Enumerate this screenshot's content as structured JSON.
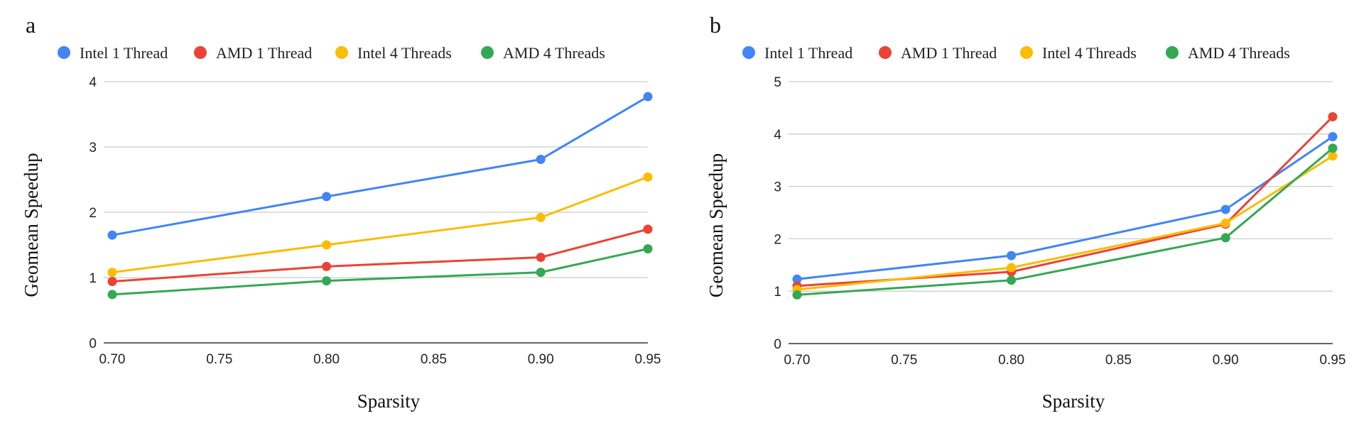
{
  "chart_data": [
    {
      "panel_label": "a",
      "type": "line",
      "title": "",
      "xlabel": "Sparsity",
      "ylabel": "Geomean Speedup",
      "x": [
        0.7,
        0.8,
        0.9,
        0.95
      ],
      "xlim": [
        0.7,
        0.95
      ],
      "xticks": [
        "0.70",
        "0.75",
        "0.80",
        "0.85",
        "0.90",
        "0.95"
      ],
      "xtick_values": [
        0.7,
        0.75,
        0.8,
        0.85,
        0.9,
        0.95
      ],
      "ylim": [
        0,
        4
      ],
      "yticks": [
        "0",
        "1",
        "2",
        "3",
        "4"
      ],
      "ytick_values": [
        0,
        1,
        2,
        3,
        4
      ],
      "grid": true,
      "legend_position": "top-left",
      "series": [
        {
          "name": "Intel 1 Thread",
          "color": "#4285F4",
          "values": [
            1.65,
            2.24,
            2.81,
            3.77
          ]
        },
        {
          "name": "AMD 1 Thread",
          "color": "#EA4335",
          "values": [
            0.94,
            1.17,
            1.31,
            1.74
          ]
        },
        {
          "name": "Intel 4 Threads",
          "color": "#FBBC04",
          "values": [
            1.08,
            1.5,
            1.92,
            2.54
          ]
        },
        {
          "name": "AMD 4 Threads",
          "color": "#34A853",
          "values": [
            0.74,
            0.95,
            1.08,
            1.44
          ]
        }
      ]
    },
    {
      "panel_label": "b",
      "type": "line",
      "title": "",
      "xlabel": "Sparsity",
      "ylabel": "Geomean Speedup",
      "x": [
        0.7,
        0.8,
        0.9,
        0.95
      ],
      "xlim": [
        0.7,
        0.95
      ],
      "xticks": [
        "0.70",
        "0.75",
        "0.80",
        "0.85",
        "0.90",
        "0.95"
      ],
      "xtick_values": [
        0.7,
        0.75,
        0.8,
        0.85,
        0.9,
        0.95
      ],
      "ylim": [
        0,
        5
      ],
      "yticks": [
        "0",
        "1",
        "2",
        "3",
        "4",
        "5"
      ],
      "ytick_values": [
        0,
        1,
        2,
        3,
        4,
        5
      ],
      "grid": true,
      "legend_position": "top-left",
      "series": [
        {
          "name": "Intel 1 Thread",
          "color": "#4285F4",
          "values": [
            1.23,
            1.68,
            2.56,
            3.95
          ]
        },
        {
          "name": "AMD 1 Thread",
          "color": "#EA4335",
          "values": [
            1.1,
            1.37,
            2.28,
            4.33
          ]
        },
        {
          "name": "Intel 4 Threads",
          "color": "#FBBC04",
          "values": [
            1.03,
            1.45,
            2.3,
            3.58
          ]
        },
        {
          "name": "AMD 4 Threads",
          "color": "#34A853",
          "values": [
            0.93,
            1.21,
            2.02,
            3.73
          ]
        }
      ]
    }
  ]
}
